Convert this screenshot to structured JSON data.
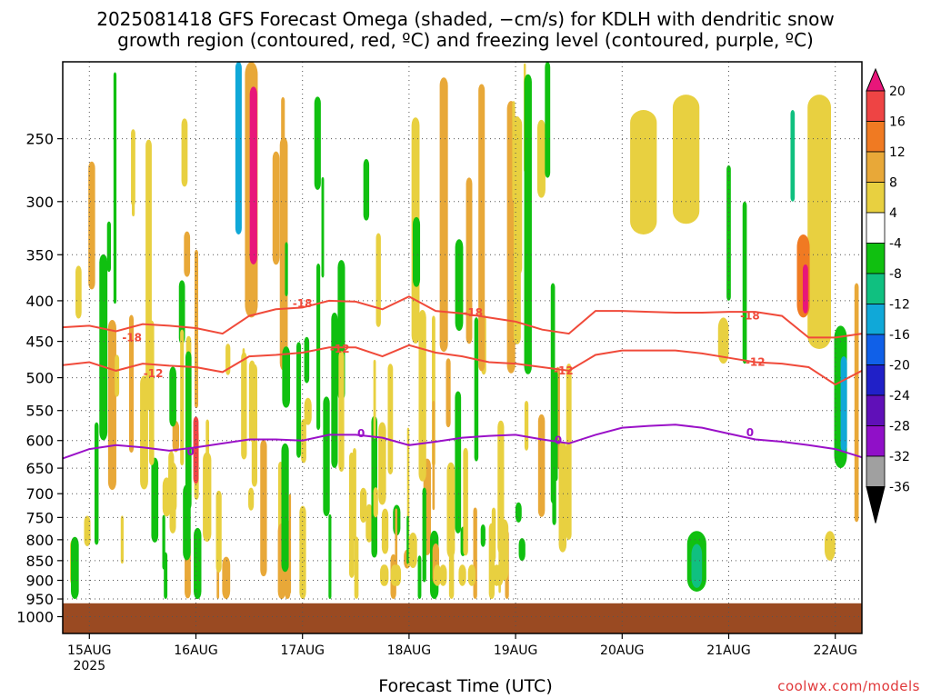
{
  "title": {
    "line1": "2025081418 GFS Forecast Omega (shaded, −cm/s) for KDLH with dendritic snow",
    "line2": "growth region (contoured, red, ºC) and freezing level (contoured, purple, ºC)"
  },
  "xaxis_label": "Forecast Time (UTC)",
  "credit": "coolwx.com/models",
  "colors": {
    "dgz_contour": "#f04a3a",
    "freezing_contour": "#9a10c8",
    "ground": "#9a4a22",
    "grid": "#555555"
  },
  "chart_data": {
    "type": "heatmap",
    "y_scale": "log-pressure",
    "y_reversed": true,
    "ylim": [
      1050,
      200
    ],
    "y_ticks": [
      250,
      300,
      350,
      400,
      450,
      500,
      550,
      600,
      650,
      700,
      750,
      800,
      850,
      900,
      950,
      1000
    ],
    "x_ticks": [
      "15AUG",
      "16AUG",
      "17AUG",
      "18AUG",
      "19AUG",
      "20AUG",
      "21AUG",
      "22AUG"
    ],
    "x_year_label": "2025",
    "xlim_days": [
      14.75,
      22.25
    ],
    "grid": true,
    "ground_top_hPa": 962,
    "colorbar": {
      "levels": [
        20,
        16,
        12,
        8,
        4,
        -4,
        -8,
        -12,
        -16,
        -20,
        -24,
        -28,
        -32,
        -36
      ],
      "colors": [
        "#e8167a",
        "#ee4444",
        "#f07a22",
        "#e8a838",
        "#e8d040",
        "#ffffff",
        "#10c010",
        "#10c080",
        "#10a8d8",
        "#1060e8",
        "#2020c8",
        "#6010b8",
        "#9010c8",
        "#a0a0a0",
        "#000000"
      ]
    },
    "series": [
      {
        "name": "-18",
        "x_days": [
          14.75,
          15.0,
          15.25,
          15.5,
          15.75,
          16.0,
          16.25,
          16.5,
          16.75,
          17.0,
          17.25,
          17.5,
          17.75,
          18.0,
          18.25,
          18.5,
          18.75,
          19.0,
          19.25,
          19.5,
          19.75,
          20.0,
          20.25,
          20.5,
          20.75,
          21.0,
          21.25,
          21.5,
          21.75,
          22.0,
          22.25
        ],
        "y_hPa": [
          432,
          430,
          437,
          428,
          430,
          433,
          440,
          418,
          410,
          408,
          400,
          401,
          410,
          395,
          412,
          415,
          420,
          425,
          435,
          440,
          412,
          412,
          413,
          414,
          414,
          413,
          413,
          418,
          445,
          445,
          440
        ],
        "labels": [
          [
            15.4,
            445
          ],
          [
            17.0,
            403
          ],
          [
            18.6,
            414
          ],
          [
            21.2,
            418
          ]
        ]
      },
      {
        "name": "-12",
        "x_days": [
          14.75,
          15.0,
          15.25,
          15.5,
          15.75,
          16.0,
          16.25,
          16.5,
          16.75,
          17.0,
          17.25,
          17.5,
          17.75,
          18.0,
          18.25,
          18.5,
          18.75,
          19.0,
          19.25,
          19.5,
          19.75,
          20.0,
          20.25,
          20.5,
          20.75,
          21.0,
          21.25,
          21.5,
          21.75,
          22.0,
          22.25
        ],
        "y_hPa": [
          482,
          478,
          490,
          480,
          483,
          485,
          492,
          470,
          468,
          465,
          458,
          458,
          470,
          455,
          465,
          470,
          478,
          480,
          485,
          490,
          468,
          462,
          462,
          462,
          466,
          472,
          478,
          480,
          485,
          510,
          490
        ],
        "labels": [
          [
            15.6,
            494
          ],
          [
            17.35,
            460
          ],
          [
            19.45,
            490
          ],
          [
            21.25,
            478
          ]
        ]
      },
      {
        "name": "0",
        "x_days": [
          14.75,
          15.0,
          15.25,
          15.5,
          15.75,
          16.0,
          16.25,
          16.5,
          16.75,
          17.0,
          17.25,
          17.5,
          17.75,
          18.0,
          18.25,
          18.5,
          18.75,
          19.0,
          19.25,
          19.5,
          19.75,
          20.0,
          20.25,
          20.5,
          20.75,
          21.0,
          21.25,
          21.5,
          21.75,
          22.0,
          22.25
        ],
        "y_hPa": [
          632,
          615,
          608,
          612,
          618,
          612,
          605,
          598,
          598,
          600,
          590,
          590,
          595,
          608,
          602,
          595,
          592,
          590,
          598,
          605,
          590,
          578,
          575,
          573,
          578,
          588,
          598,
          602,
          608,
          615,
          630
        ],
        "labels": [
          [
            15.95,
            620
          ],
          [
            17.55,
            588
          ],
          [
            19.4,
            600
          ],
          [
            21.2,
            586
          ]
        ]
      }
    ]
  }
}
